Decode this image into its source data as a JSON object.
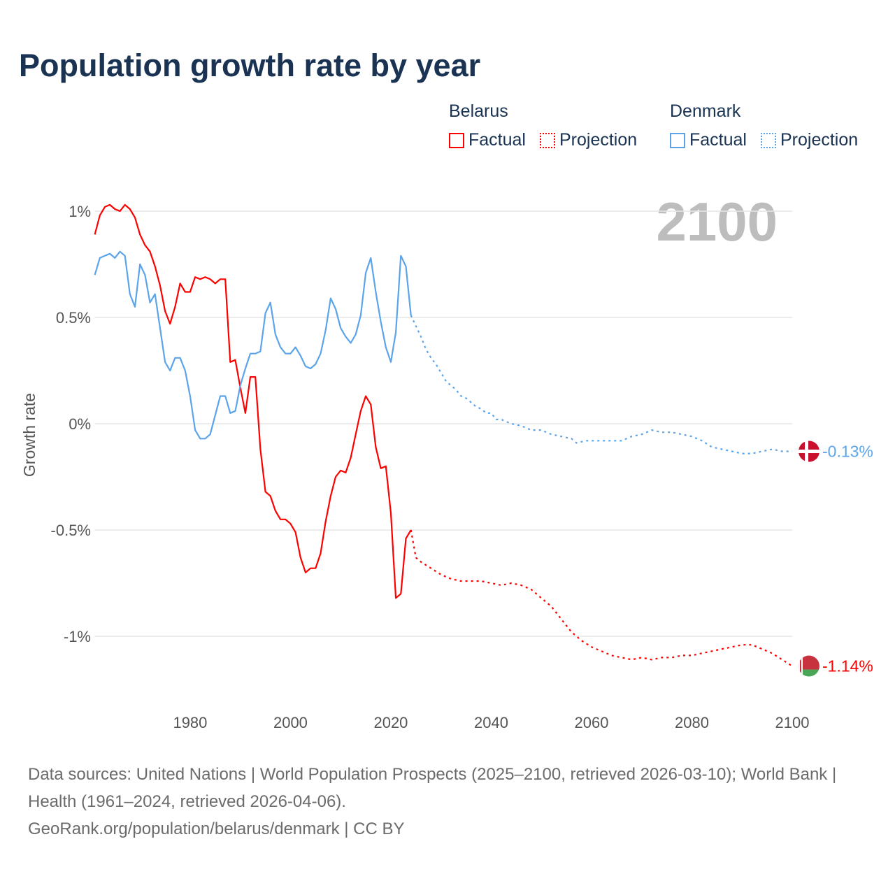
{
  "title": "Population growth rate by year",
  "legend": {
    "groups": [
      {
        "name": "Belarus",
        "factual": "Factual",
        "projection": "Projection",
        "color": "#ff0000"
      },
      {
        "name": "Denmark",
        "factual": "Factual",
        "projection": "Projection",
        "color": "#5ba4ea"
      }
    ]
  },
  "current_year": "2100",
  "end_labels": {
    "belarus": "-1.14%",
    "denmark": "-0.13%"
  },
  "footer": {
    "sources": "Data sources: United Nations | World Population Prospects (2025–2100, retrieved 2026-03-10); World Bank | Health (1961–2024, retrieved 2026-04-06).",
    "link": "GeoRank.org/population/belarus/denmark | CC BY"
  },
  "chart_data": {
    "type": "line",
    "title": "Population growth rate by year",
    "xlabel": "",
    "ylabel": "Growth rate",
    "xlim": [
      1961,
      2100
    ],
    "ylim": [
      -1.25,
      1.05
    ],
    "x_ticks": [
      "1980",
      "2000",
      "2020",
      "2040",
      "2060",
      "2080",
      "2100"
    ],
    "y_ticks": [
      {
        "v": 1,
        "label": "1%"
      },
      {
        "v": 0.5,
        "label": "0.5%"
      },
      {
        "v": 0,
        "label": "0%"
      },
      {
        "v": -0.5,
        "label": "-0.5%"
      },
      {
        "v": -1,
        "label": "-1%"
      }
    ],
    "grid": true,
    "series": [
      {
        "name": "Belarus Factual",
        "color": "#ff0000",
        "dashed": false,
        "start": 1961,
        "values": [
          0.89,
          0.98,
          1.02,
          1.03,
          1.01,
          1.0,
          1.03,
          1.01,
          0.97,
          0.89,
          0.84,
          0.81,
          0.74,
          0.65,
          0.53,
          0.47,
          0.55,
          0.66,
          0.62,
          0.62,
          0.69,
          0.68,
          0.69,
          0.68,
          0.66,
          0.68,
          0.68,
          0.29,
          0.3,
          0.17,
          0.05,
          0.22,
          0.22,
          -0.12,
          -0.32,
          -0.34,
          -0.41,
          -0.45,
          -0.45,
          -0.47,
          -0.51,
          -0.63,
          -0.7,
          -0.68,
          -0.68,
          -0.61,
          -0.46,
          -0.34,
          -0.25,
          -0.22,
          -0.23,
          -0.16,
          -0.05,
          0.06,
          0.13,
          0.09,
          -0.11,
          -0.21,
          -0.2,
          -0.42,
          -0.82,
          -0.8,
          -0.54,
          -0.5
        ]
      },
      {
        "name": "Denmark Factual",
        "color": "#5ba4ea",
        "dashed": false,
        "start": 1961,
        "values": [
          0.7,
          0.78,
          0.79,
          0.8,
          0.78,
          0.81,
          0.79,
          0.61,
          0.55,
          0.75,
          0.7,
          0.57,
          0.61,
          0.45,
          0.29,
          0.25,
          0.31,
          0.31,
          0.25,
          0.13,
          -0.03,
          -0.07,
          -0.07,
          -0.05,
          0.04,
          0.13,
          0.13,
          0.05,
          0.06,
          0.18,
          0.26,
          0.33,
          0.33,
          0.34,
          0.52,
          0.57,
          0.42,
          0.36,
          0.33,
          0.33,
          0.36,
          0.32,
          0.27,
          0.26,
          0.28,
          0.33,
          0.44,
          0.59,
          0.54,
          0.45,
          0.41,
          0.38,
          0.42,
          0.51,
          0.71,
          0.78,
          0.62,
          0.48,
          0.36,
          0.29,
          0.43,
          0.79,
          0.74,
          0.51
        ]
      },
      {
        "name": "Belarus Projection",
        "color": "#ff0000",
        "dashed": true,
        "points": [
          [
            2024,
            -0.5
          ],
          [
            2025,
            -0.63
          ],
          [
            2026,
            -0.65
          ],
          [
            2028,
            -0.68
          ],
          [
            2030,
            -0.71
          ],
          [
            2032,
            -0.73
          ],
          [
            2034,
            -0.74
          ],
          [
            2036,
            -0.74
          ],
          [
            2038,
            -0.74
          ],
          [
            2040,
            -0.75
          ],
          [
            2042,
            -0.76
          ],
          [
            2044,
            -0.75
          ],
          [
            2046,
            -0.76
          ],
          [
            2048,
            -0.78
          ],
          [
            2050,
            -0.82
          ],
          [
            2052,
            -0.86
          ],
          [
            2054,
            -0.92
          ],
          [
            2056,
            -0.98
          ],
          [
            2058,
            -1.02
          ],
          [
            2060,
            -1.05
          ],
          [
            2062,
            -1.07
          ],
          [
            2064,
            -1.09
          ],
          [
            2066,
            -1.1
          ],
          [
            2068,
            -1.11
          ],
          [
            2070,
            -1.1
          ],
          [
            2072,
            -1.11
          ],
          [
            2074,
            -1.1
          ],
          [
            2076,
            -1.1
          ],
          [
            2078,
            -1.09
          ],
          [
            2080,
            -1.09
          ],
          [
            2082,
            -1.08
          ],
          [
            2084,
            -1.07
          ],
          [
            2086,
            -1.06
          ],
          [
            2088,
            -1.05
          ],
          [
            2090,
            -1.04
          ],
          [
            2092,
            -1.04
          ],
          [
            2094,
            -1.06
          ],
          [
            2096,
            -1.08
          ],
          [
            2098,
            -1.11
          ],
          [
            2100,
            -1.14
          ]
        ]
      },
      {
        "name": "Denmark Projection",
        "color": "#5ba4ea",
        "dashed": true,
        "points": [
          [
            2024,
            0.51
          ],
          [
            2025,
            0.46
          ],
          [
            2026,
            0.41
          ],
          [
            2027,
            0.35
          ],
          [
            2028,
            0.31
          ],
          [
            2029,
            0.28
          ],
          [
            2030,
            0.24
          ],
          [
            2031,
            0.2
          ],
          [
            2032,
            0.18
          ],
          [
            2033,
            0.16
          ],
          [
            2034,
            0.13
          ],
          [
            2035,
            0.12
          ],
          [
            2036,
            0.1
          ],
          [
            2037,
            0.08
          ],
          [
            2038,
            0.07
          ],
          [
            2039,
            0.05
          ],
          [
            2040,
            0.05
          ],
          [
            2041,
            0.02
          ],
          [
            2042,
            0.02
          ],
          [
            2044,
            0.0
          ],
          [
            2046,
            -0.01
          ],
          [
            2048,
            -0.03
          ],
          [
            2050,
            -0.03
          ],
          [
            2052,
            -0.05
          ],
          [
            2054,
            -0.06
          ],
          [
            2056,
            -0.07
          ],
          [
            2057,
            -0.09
          ],
          [
            2059,
            -0.08
          ],
          [
            2062,
            -0.08
          ],
          [
            2066,
            -0.08
          ],
          [
            2068,
            -0.06
          ],
          [
            2070,
            -0.05
          ],
          [
            2072,
            -0.03
          ],
          [
            2074,
            -0.04
          ],
          [
            2076,
            -0.04
          ],
          [
            2078,
            -0.05
          ],
          [
            2080,
            -0.06
          ],
          [
            2082,
            -0.08
          ],
          [
            2084,
            -0.11
          ],
          [
            2086,
            -0.12
          ],
          [
            2088,
            -0.13
          ],
          [
            2090,
            -0.14
          ],
          [
            2092,
            -0.14
          ],
          [
            2094,
            -0.13
          ],
          [
            2096,
            -0.12
          ],
          [
            2098,
            -0.13
          ],
          [
            2100,
            -0.13
          ]
        ]
      }
    ]
  }
}
